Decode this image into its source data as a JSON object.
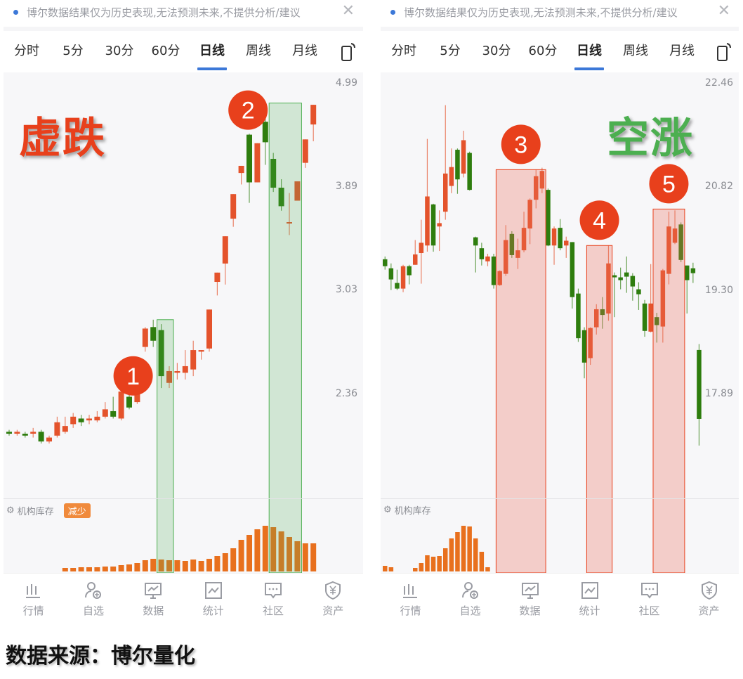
{
  "notice": {
    "text": "博尔数据结果仅为历史表现,无法预测未来,不提供分析/建议"
  },
  "tabs": [
    "分时",
    "5分",
    "30分",
    "60分",
    "日线",
    "周线",
    "月线"
  ],
  "active_tab": "日线",
  "volume_label": "机构库存",
  "nav": [
    {
      "label": "行情",
      "icon": "bar-chart-icon"
    },
    {
      "label": "自选",
      "icon": "user-add-icon"
    },
    {
      "label": "数据",
      "icon": "monitor-chart-icon"
    },
    {
      "label": "统计",
      "icon": "line-chart-icon"
    },
    {
      "label": "社区",
      "icon": "chat-icon"
    },
    {
      "label": "资产",
      "icon": "yuan-shield-icon"
    }
  ],
  "colors": {
    "up": "#e4532c",
    "down": "#2e7d0e",
    "accent": "#3c78d8",
    "annotation": "#e8401c",
    "volume": "#e8701e",
    "green_label": "#4caf50"
  },
  "caption": "数据来源：博尔量化",
  "panels": [
    {
      "title": "虚跌",
      "title_color": "#e8401c",
      "badge": "减少",
      "annotations": [
        {
          "label": "1",
          "from_candle": 19,
          "to_candle": 20,
          "top_price": 2.83
        },
        {
          "label": "2",
          "from_candle": 33,
          "to_candle": 36,
          "top_price": 4.77
        }
      ],
      "highlight": "green"
    },
    {
      "title": "空涨",
      "title_color": "#4caf50",
      "badge": "",
      "annotations": [
        {
          "label": "3",
          "from_candle": 19,
          "to_candle": 26,
          "top_price": 21.1
        },
        {
          "label": "4",
          "from_candle": 34,
          "to_candle": 37,
          "top_price": 19.96
        },
        {
          "label": "5",
          "from_candle": 45,
          "to_candle": 49,
          "top_price": 20.5
        }
      ],
      "highlight": "red"
    }
  ],
  "chart_data": [
    {
      "type": "candlestick",
      "scale": "log",
      "y_ticks": [
        4.99,
        3.89,
        3.03,
        2.36
      ],
      "candles_ohlc": [
        [
          2.16,
          2.15,
          2.17,
          2.14
        ],
        [
          2.15,
          2.16,
          2.17,
          2.14
        ],
        [
          2.15,
          2.14,
          2.16,
          2.13
        ],
        [
          2.15,
          2.16,
          2.18,
          2.13
        ],
        [
          2.16,
          2.11,
          2.17,
          2.1
        ],
        [
          2.11,
          2.13,
          2.14,
          2.1
        ],
        [
          2.14,
          2.21,
          2.24,
          2.13
        ],
        [
          2.16,
          2.19,
          2.24,
          2.15
        ],
        [
          2.2,
          2.24,
          2.26,
          2.18
        ],
        [
          2.23,
          2.21,
          2.25,
          2.19
        ],
        [
          2.22,
          2.23,
          2.25,
          2.2
        ],
        [
          2.22,
          2.24,
          2.27,
          2.21
        ],
        [
          2.24,
          2.28,
          2.32,
          2.23
        ],
        [
          2.27,
          2.24,
          2.35,
          2.23
        ],
        [
          2.23,
          2.38,
          2.41,
          2.22
        ],
        [
          2.35,
          2.29,
          2.38,
          2.28
        ],
        [
          2.32,
          2.4,
          2.43,
          2.31
        ],
        [
          2.65,
          2.77,
          2.78,
          2.62
        ],
        [
          2.78,
          2.69,
          2.83,
          2.65
        ],
        [
          2.76,
          2.47,
          2.8,
          2.4
        ],
        [
          2.43,
          2.5,
          2.53,
          2.4
        ],
        [
          2.49,
          2.5,
          2.55,
          2.45
        ],
        [
          2.49,
          2.53,
          2.63,
          2.45
        ],
        [
          2.51,
          2.63,
          2.69,
          2.47
        ],
        [
          2.62,
          2.63,
          2.63,
          2.57
        ],
        [
          2.64,
          2.9,
          2.9,
          2.62
        ],
        [
          3.1,
          3.17,
          3.17,
          3.0
        ],
        [
          3.24,
          3.46,
          3.46,
          3.08
        ],
        [
          3.61,
          3.83,
          3.83,
          3.54
        ],
        [
          4.03,
          4.1,
          4.1,
          3.92
        ],
        [
          4.42,
          3.94,
          4.43,
          3.75
        ],
        [
          3.94,
          4.33,
          4.33,
          3.94
        ],
        [
          4.56,
          4.34,
          4.69,
          4.11
        ],
        [
          4.17,
          3.89,
          4.23,
          3.85
        ],
        [
          3.89,
          3.72,
          3.97,
          3.68
        ],
        [
          3.57,
          3.58,
          3.84,
          3.47
        ],
        [
          3.77,
          3.95,
          3.95,
          3.77
        ],
        [
          4.13,
          4.37,
          4.37,
          4.08
        ],
        [
          4.53,
          4.75,
          4.75,
          4.35
        ]
      ],
      "volume": [
        null,
        null,
        null,
        null,
        null,
        null,
        null,
        5,
        5,
        6,
        6,
        6,
        7,
        7,
        9,
        10,
        12,
        16,
        18,
        17,
        16,
        16,
        15,
        17,
        15,
        18,
        22,
        26,
        33,
        45,
        52,
        60,
        65,
        63,
        57,
        49,
        43,
        40,
        40
      ]
    },
    {
      "type": "candlestick",
      "scale": "log",
      "y_ticks": [
        22.46,
        20.82,
        19.3,
        17.89
      ],
      "candles_ohlc": [
        [
          19.76,
          19.66,
          19.8,
          19.61
        ],
        [
          19.63,
          19.47,
          19.7,
          19.32
        ],
        [
          19.42,
          19.34,
          19.61,
          19.32
        ],
        [
          19.34,
          19.66,
          19.68,
          19.29
        ],
        [
          19.66,
          19.53,
          19.68,
          19.4
        ],
        [
          19.68,
          19.83,
          20.04,
          19.68
        ],
        [
          19.85,
          20.0,
          20.34,
          19.41
        ],
        [
          19.96,
          20.69,
          21.58,
          19.87
        ],
        [
          20.57,
          19.96,
          20.58,
          19.87
        ],
        [
          20.24,
          20.29,
          20.48,
          19.88
        ],
        [
          20.46,
          21.04,
          22.12,
          20.34
        ],
        [
          20.85,
          21.14,
          21.43,
          20.74
        ],
        [
          21.41,
          20.95,
          21.43,
          20.73
        ],
        [
          21.04,
          21.56,
          21.71,
          20.98
        ],
        [
          21.36,
          20.79,
          21.38,
          20.78
        ],
        [
          20.08,
          19.96,
          20.09,
          19.57
        ],
        [
          19.92,
          19.76,
          20.0,
          19.67
        ],
        [
          19.73,
          19.8,
          19.84,
          19.66
        ],
        [
          19.8,
          19.39,
          19.84,
          19.34
        ],
        [
          19.39,
          19.59,
          19.6,
          19.38
        ],
        [
          19.55,
          20.04,
          20.26,
          19.52
        ],
        [
          20.13,
          19.82,
          20.17,
          19.78
        ],
        [
          19.78,
          19.89,
          20.06,
          19.62
        ],
        [
          19.89,
          20.22,
          20.46,
          19.86
        ],
        [
          20.21,
          20.64,
          20.66,
          19.98
        ],
        [
          20.64,
          21.0,
          21.1,
          20.51
        ],
        [
          20.81,
          21.08,
          21.13,
          20.74
        ],
        [
          20.79,
          19.96,
          20.81,
          19.95
        ],
        [
          19.96,
          20.21,
          20.24,
          19.68
        ],
        [
          20.22,
          19.92,
          20.35,
          19.89
        ],
        [
          19.96,
          20.03,
          20.09,
          19.78
        ],
        [
          20.01,
          19.22,
          20.01,
          19.06
        ],
        [
          19.27,
          18.65,
          19.34,
          18.6
        ],
        [
          18.76,
          18.32,
          18.8,
          18.11
        ],
        [
          18.38,
          18.79,
          18.8,
          18.29
        ],
        [
          18.8,
          19.05,
          19.12,
          18.7
        ],
        [
          19.05,
          18.97,
          19.22,
          18.78
        ],
        [
          18.99,
          19.7,
          19.96,
          18.89
        ],
        [
          19.53,
          19.5,
          19.57,
          18.94
        ],
        [
          19.5,
          19.46,
          19.64,
          19.33
        ],
        [
          19.57,
          19.51,
          19.8,
          19.28
        ],
        [
          19.52,
          19.37,
          19.56,
          19.17
        ],
        [
          19.33,
          19.26,
          19.43,
          19.04
        ],
        [
          19.13,
          18.75,
          19.18,
          18.67
        ],
        [
          18.74,
          19.13,
          19.69,
          18.73
        ],
        [
          18.94,
          18.83,
          19.0,
          18.59
        ],
        [
          18.81,
          19.6,
          19.62,
          18.59
        ],
        [
          19.55,
          20.24,
          20.46,
          19.4
        ],
        [
          20.0,
          20.21,
          20.48,
          19.98
        ],
        [
          20.27,
          19.75,
          20.3,
          19.72
        ],
        [
          19.67,
          19.46,
          19.67,
          18.99
        ],
        [
          19.63,
          19.56,
          19.71,
          19.42
        ],
        [
          18.49,
          17.58,
          18.57,
          17.24
        ]
      ],
      "volume": [
        8,
        6,
        null,
        null,
        null,
        5,
        12,
        23,
        21,
        22,
        33,
        47,
        56,
        65,
        64,
        47,
        28,
        6
      ]
    }
  ]
}
